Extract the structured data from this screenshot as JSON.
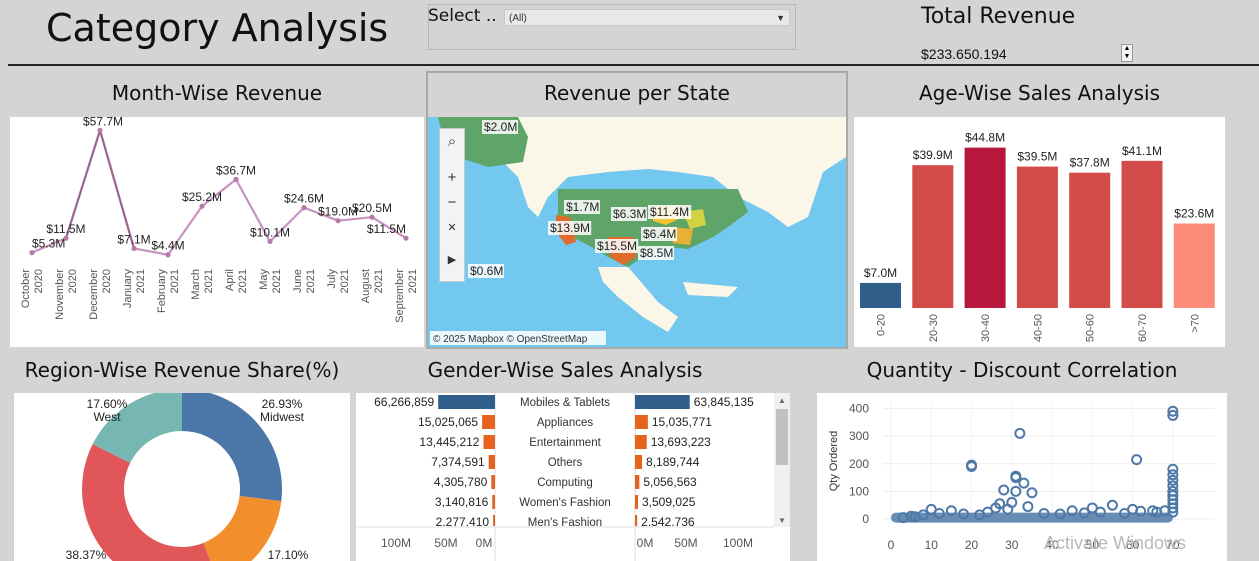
{
  "header": {
    "title": "Category Analysis",
    "filter_label": "Select ..",
    "filter_value": "(All)",
    "total_revenue_title": "Total Revenue",
    "total_revenue_value": "$233.650.194"
  },
  "panels": {
    "month": "Month-Wise Revenue",
    "state": "Revenue per State",
    "age": "Age-Wise Sales Analysis",
    "region": "Region-Wise Revenue Share(%)",
    "gender": "Gender-Wise Sales Analysis",
    "qty": "Quantity - Discount Correlation"
  },
  "map": {
    "labels": [
      "$2.0M",
      "$1.7M",
      "$6.3M",
      "$11.4M",
      "$13.9M",
      "$6.4M",
      "$15.5M",
      "$8.5M",
      "$0.6M"
    ],
    "credit": "© 2025 Mapbox © OpenStreetMap",
    "controls": {
      "search": "⌕",
      "zoom_in": "+",
      "zoom_out": "−",
      "pin": "✕",
      "play": "▶"
    }
  },
  "windows_watermark": "Activate Windows",
  "colors": {
    "accent_line": "#c792bf",
    "age_low": "#2f5f8a",
    "age_high": "#b8173c",
    "age_mid": "#d24b48",
    "age_light": "#fd8b79",
    "female": "#2f5f8a",
    "male": "#e5631e",
    "donut_blue": "#4a76a8",
    "donut_orange": "#f28e2b",
    "donut_red": "#e15759",
    "donut_teal": "#76b7b2",
    "scatter": "#4e79a7"
  },
  "chart_data": [
    {
      "type": "line",
      "title": "Month-Wise Revenue",
      "categories": [
        "October 2020",
        "November 2020",
        "December 2020",
        "January 2021",
        "February 2021",
        "March 2021",
        "April 2021",
        "May 2021",
        "June 2021",
        "July 2021",
        "August 2021",
        "September 2021"
      ],
      "values": [
        5.3,
        11.5,
        57.7,
        7.1,
        4.4,
        25.2,
        36.7,
        10.1,
        24.6,
        19.0,
        20.5,
        11.5
      ],
      "value_labels": [
        "$5.3M",
        "$11.5M",
        "$57.7M",
        "$7.1M",
        "$4.4M",
        "$25.2M",
        "$36.7M",
        "$10.1M",
        "$24.6M",
        "$19.0M",
        "$20.5M",
        "$11.5M"
      ],
      "ylim": [
        0,
        60
      ]
    },
    {
      "type": "bar",
      "title": "Age-Wise Sales Analysis",
      "categories": [
        "0-20",
        "20-30",
        "30-40",
        "40-50",
        "50-60",
        "60-70",
        ">70"
      ],
      "values": [
        7.0,
        39.9,
        44.8,
        39.5,
        37.8,
        41.1,
        23.6
      ],
      "value_labels": [
        "$7.0M",
        "$39.9M",
        "$44.8M",
        "$39.5M",
        "$37.8M",
        "$41.1M",
        "$23.6M"
      ],
      "ylim": [
        0,
        50
      ]
    },
    {
      "type": "pie",
      "title": "Region-Wise Revenue Share(%)",
      "slices": [
        {
          "name": "Midwest",
          "value": 26.93,
          "label": "26.93%"
        },
        {
          "name": "",
          "value": 17.1,
          "label": "17.10%"
        },
        {
          "name": "",
          "value": 38.37,
          "label": "38.37%"
        },
        {
          "name": "West",
          "value": 17.6,
          "label": "17.60%"
        }
      ]
    },
    {
      "type": "bar",
      "title": "Gender-Wise Sales Analysis",
      "categories": [
        "Mobiles & Tablets",
        "Appliances",
        "Entertainment",
        "Others",
        "Computing",
        "Women's Fashion",
        "Men's Fashion"
      ],
      "left_values": [
        66266859,
        15025065,
        13445212,
        7374591,
        4305780,
        3140816,
        2277410
      ],
      "left_labels": [
        "66,266,859",
        "15,025,065",
        "13,445,212",
        "7,374,591",
        "4,305,780",
        "3,140,816",
        "2,277,410"
      ],
      "right_values": [
        63845135,
        15035771,
        13693223,
        8189744,
        5056563,
        3509025,
        2542736
      ],
      "right_labels": [
        "63,845,135",
        "15,035,771",
        "13,693,223",
        "8,189,744",
        "5,056,563",
        "3,509,025",
        "2,542,736"
      ],
      "left_ticks": [
        "100M",
        "50M",
        "0M"
      ],
      "right_ticks": [
        "0M",
        "50M",
        "100M"
      ]
    },
    {
      "type": "scatter",
      "title": "Quantity - Discount Correlation",
      "ylabel": "Qty Ordered",
      "xlim": [
        0,
        75
      ],
      "ylim": [
        0,
        420
      ],
      "x_ticks": [
        "0",
        "10",
        "20",
        "30",
        "40",
        "50",
        "60",
        "70"
      ],
      "y_ticks": [
        "0",
        "100",
        "200",
        "300",
        "400"
      ],
      "points": [
        [
          32,
          310
        ],
        [
          20,
          195
        ],
        [
          20,
          190
        ],
        [
          31,
          150
        ],
        [
          31,
          155
        ],
        [
          33,
          130
        ],
        [
          61,
          215
        ],
        [
          28,
          105
        ],
        [
          31,
          100
        ],
        [
          35,
          95
        ],
        [
          30,
          60
        ],
        [
          27,
          55
        ],
        [
          26,
          40
        ],
        [
          34,
          45
        ],
        [
          29,
          35
        ],
        [
          10,
          35
        ],
        [
          15,
          30
        ],
        [
          24,
          25
        ],
        [
          45,
          30
        ],
        [
          50,
          40
        ],
        [
          55,
          50
        ],
        [
          60,
          35
        ],
        [
          65,
          30
        ],
        [
          70,
          390
        ],
        [
          70,
          375
        ],
        [
          70,
          180
        ],
        [
          70,
          160
        ],
        [
          70,
          140
        ],
        [
          70,
          120
        ],
        [
          70,
          100
        ],
        [
          70,
          85
        ],
        [
          70,
          70
        ],
        [
          70,
          55
        ],
        [
          70,
          40
        ],
        [
          70,
          25
        ],
        [
          12,
          20
        ],
        [
          8,
          15
        ],
        [
          5,
          10
        ],
        [
          18,
          18
        ],
        [
          22,
          15
        ],
        [
          38,
          20
        ],
        [
          42,
          18
        ],
        [
          48,
          22
        ],
        [
          52,
          25
        ],
        [
          58,
          20
        ],
        [
          62,
          28
        ],
        [
          66,
          25
        ],
        [
          68,
          30
        ],
        [
          3,
          5
        ],
        [
          6,
          8
        ]
      ],
      "dense_band": {
        "x_from": 0,
        "x_to": 70,
        "y": 5
      }
    }
  ]
}
